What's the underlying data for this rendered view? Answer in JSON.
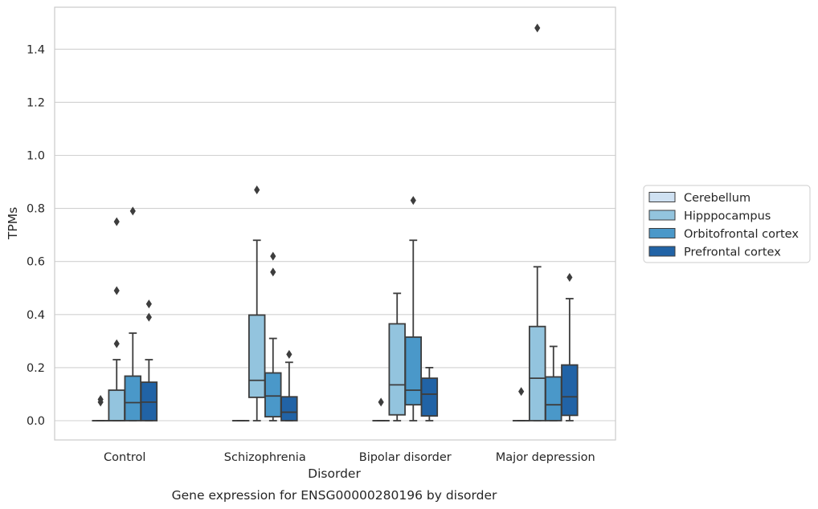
{
  "chart_data": {
    "type": "box",
    "xlabel": "Disorder",
    "ylabel": "TPMs",
    "caption": "Gene expression for ENSG00000280196 by disorder",
    "ylim": [
      -0.07,
      1.555
    ],
    "yticks": [
      "0.0",
      "0.2",
      "0.4",
      "0.6",
      "0.8",
      "1.0",
      "1.2",
      "1.4"
    ],
    "grid": "horizontal",
    "legend_position": "right",
    "categories": [
      "Control",
      "Schizophrenia",
      "Bipolar disorder",
      "Major depression"
    ],
    "series": [
      {
        "name": "Cerebellum",
        "color": "#cfe1f2",
        "boxes": [
          {
            "q1": 0,
            "median": 0,
            "q3": 0,
            "whisker_low": 0,
            "whisker_high": 0,
            "outliers": [
              0.07,
              0.08
            ]
          },
          {
            "q1": 0,
            "median": 0,
            "q3": 0,
            "whisker_low": 0,
            "whisker_high": 0,
            "outliers": []
          },
          {
            "q1": 0,
            "median": 0,
            "q3": 0,
            "whisker_low": 0,
            "whisker_high": 0,
            "outliers": [
              0.07
            ]
          },
          {
            "q1": 0,
            "median": 0,
            "q3": 0,
            "whisker_low": 0,
            "whisker_high": 0,
            "outliers": [
              0.11
            ]
          }
        ]
      },
      {
        "name": "Hipppocampus",
        "color": "#93c4de",
        "boxes": [
          {
            "q1": 0,
            "median": 0,
            "q3": 0.115,
            "whisker_low": 0,
            "whisker_high": 0.23,
            "outliers": [
              0.29,
              0.49,
              0.75
            ]
          },
          {
            "q1": 0.088,
            "median": 0.152,
            "q3": 0.398,
            "whisker_low": 0,
            "whisker_high": 0.68,
            "outliers": [
              0.87
            ]
          },
          {
            "q1": 0.022,
            "median": 0.135,
            "q3": 0.365,
            "whisker_low": 0,
            "whisker_high": 0.48,
            "outliers": []
          },
          {
            "q1": 0,
            "median": 0.16,
            "q3": 0.355,
            "whisker_low": 0,
            "whisker_high": 0.58,
            "outliers": [
              1.48
            ]
          }
        ]
      },
      {
        "name": "Orbitofrontal cortex",
        "color": "#4a98c9",
        "boxes": [
          {
            "q1": 0,
            "median": 0.068,
            "q3": 0.168,
            "whisker_low": 0,
            "whisker_high": 0.33,
            "outliers": [
              0.79
            ]
          },
          {
            "q1": 0.015,
            "median": 0.093,
            "q3": 0.18,
            "whisker_low": 0,
            "whisker_high": 0.31,
            "outliers": [
              0.56,
              0.62
            ]
          },
          {
            "q1": 0.06,
            "median": 0.115,
            "q3": 0.315,
            "whisker_low": 0,
            "whisker_high": 0.68,
            "outliers": [
              0.83
            ]
          },
          {
            "q1": 0,
            "median": 0.06,
            "q3": 0.165,
            "whisker_low": 0,
            "whisker_high": 0.28,
            "outliers": []
          }
        ]
      },
      {
        "name": "Prefrontal cortex",
        "color": "#2163a6",
        "boxes": [
          {
            "q1": 0,
            "median": 0.07,
            "q3": 0.145,
            "whisker_low": 0,
            "whisker_high": 0.23,
            "outliers": [
              0.39,
              0.44
            ]
          },
          {
            "q1": 0,
            "median": 0.032,
            "q3": 0.09,
            "whisker_low": 0,
            "whisker_high": 0.22,
            "outliers": [
              0.25
            ]
          },
          {
            "q1": 0.018,
            "median": 0.1,
            "q3": 0.16,
            "whisker_low": 0,
            "whisker_high": 0.2,
            "outliers": []
          },
          {
            "q1": 0.02,
            "median": 0.09,
            "q3": 0.21,
            "whisker_low": 0,
            "whisker_high": 0.46,
            "outliers": [
              0.54
            ]
          }
        ]
      }
    ]
  }
}
